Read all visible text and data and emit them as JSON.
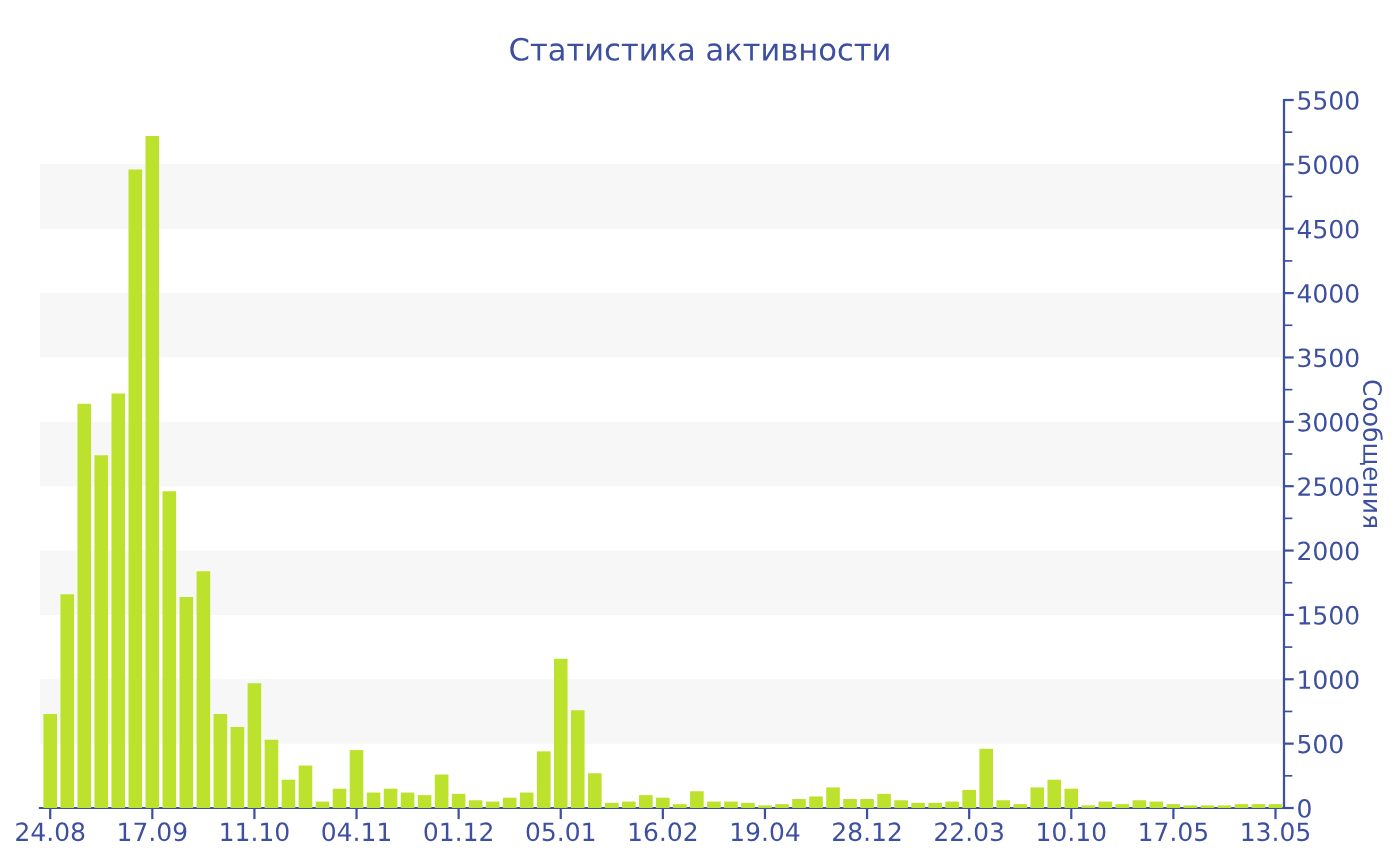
{
  "chart_data": {
    "type": "bar",
    "title": "Статистика активности",
    "ylabel": "Сообщения",
    "categories": [
      "24.08",
      null,
      null,
      null,
      null,
      null,
      "17.09",
      null,
      null,
      null,
      null,
      null,
      "11.10",
      null,
      null,
      null,
      null,
      null,
      "04.11",
      null,
      null,
      null,
      null,
      null,
      "01.12",
      null,
      null,
      null,
      null,
      null,
      "05.01",
      null,
      null,
      null,
      null,
      null,
      "16.02",
      null,
      null,
      null,
      null,
      null,
      "19.04",
      null,
      null,
      null,
      null,
      null,
      "28.12",
      null,
      null,
      null,
      null,
      null,
      "22.03",
      null,
      null,
      null,
      null,
      null,
      "10.10",
      null,
      null,
      null,
      null,
      null,
      "17.05",
      null,
      null,
      null,
      null,
      null,
      "13.05"
    ],
    "values": [
      730,
      1660,
      3140,
      2740,
      3220,
      4960,
      5220,
      2460,
      1640,
      1840,
      730,
      630,
      970,
      530,
      220,
      330,
      50,
      150,
      450,
      120,
      150,
      120,
      100,
      260,
      110,
      60,
      50,
      80,
      120,
      440,
      1160,
      760,
      270,
      40,
      50,
      100,
      80,
      30,
      130,
      50,
      50,
      40,
      20,
      30,
      70,
      90,
      160,
      70,
      70,
      110,
      60,
      40,
      40,
      50,
      140,
      460,
      60,
      30,
      160,
      220,
      150,
      20,
      50,
      30,
      60,
      50,
      30,
      20,
      20,
      20,
      30,
      30,
      30
    ],
    "color": "#bde22e",
    "ylim": [
      0,
      5500
    ],
    "yticks": [
      0,
      500,
      1000,
      1500,
      2000,
      2500,
      3000,
      3500,
      4000,
      4500,
      5000,
      5500
    ],
    "bands": [
      {
        "axis": "y",
        "from": 500,
        "to": 1000,
        "color": "#f7f7f7"
      },
      {
        "axis": "y",
        "from": 1500,
        "to": 2000,
        "color": "#f7f7f7"
      },
      {
        "axis": "y",
        "from": 2500,
        "to": 3000,
        "color": "#f7f7f7"
      },
      {
        "axis": "y",
        "from": 3500,
        "to": 4000,
        "color": "#f7f7f7"
      },
      {
        "axis": "y",
        "from": 4500,
        "to": 5000,
        "color": "#f7f7f7"
      }
    ],
    "grid": false
  }
}
